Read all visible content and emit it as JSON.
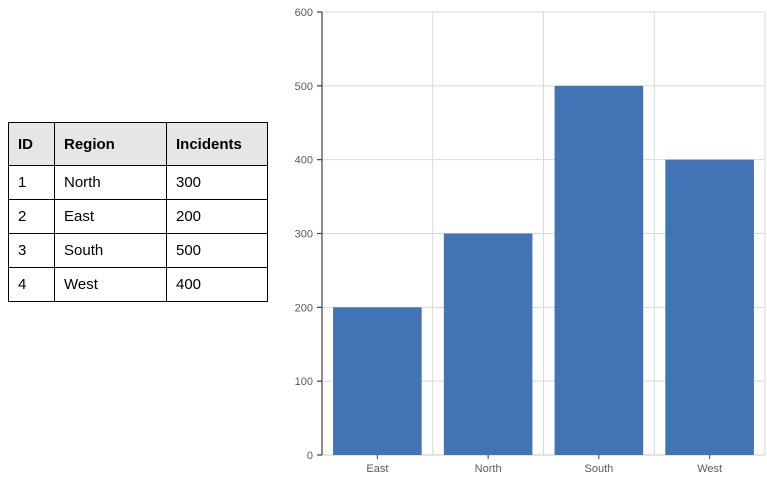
{
  "table": {
    "columns": [
      "ID",
      "Region",
      "Incidents"
    ],
    "rows": [
      [
        "1",
        "North",
        "300"
      ],
      [
        "2",
        "East",
        "200"
      ],
      [
        "3",
        "South",
        "500"
      ],
      [
        "4",
        "West",
        "400"
      ]
    ],
    "header_bg": "#e6e6e6",
    "border_color": "#000000"
  },
  "chart_data": {
    "type": "bar",
    "categories": [
      "East",
      "North",
      "South",
      "West"
    ],
    "values": [
      200,
      300,
      500,
      400
    ],
    "title": "",
    "xlabel": "",
    "ylabel": "",
    "ylim": [
      0,
      600
    ],
    "yticks": [
      0,
      100,
      200,
      300,
      400,
      500,
      600
    ],
    "grid": true,
    "legend_position": "none",
    "bar_color": "#4273B5",
    "gridline_color": "#D9D9D9",
    "baseline_color": "#C9C9C9",
    "axis_color": "#404040",
    "tick_label_color": "#595959",
    "tick_font_size": 11
  }
}
